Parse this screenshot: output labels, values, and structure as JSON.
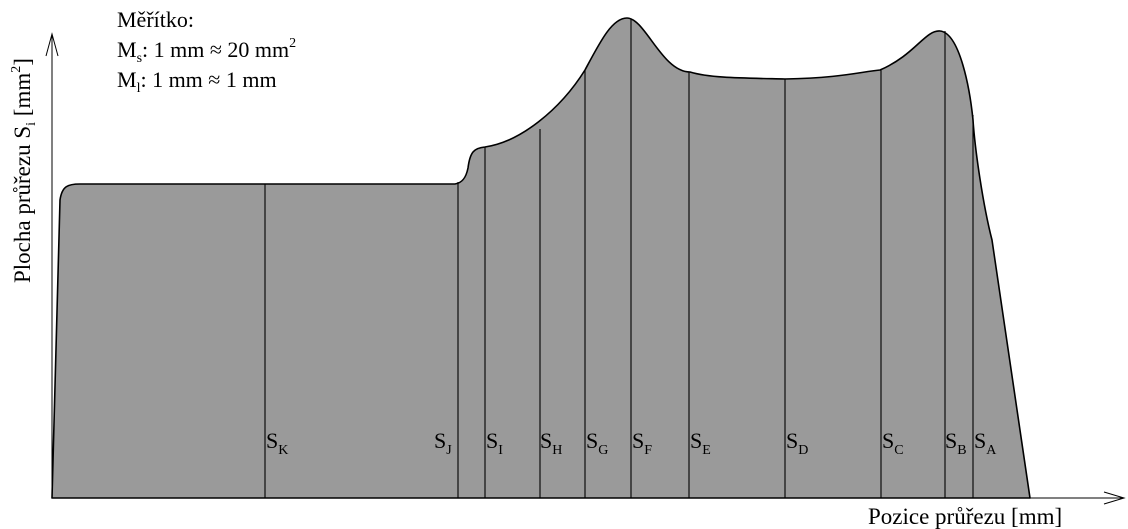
{
  "scale": {
    "title": "Měřítko:",
    "line1": {
      "symbol": "M",
      "sub": "s",
      "text": ": 1 mm ≈ 20 mm",
      "sup": "2"
    },
    "line2": {
      "symbol": "M",
      "sub": "l",
      "text": ": 1 mm ≈ 1 mm"
    }
  },
  "y_axis": {
    "label": "Plocha průřezu S",
    "sub": "i",
    "unit": " [mm",
    "unit_sup": "2",
    "close": "]"
  },
  "x_axis": {
    "label": "Pozice průřezu [mm]"
  },
  "sections": [
    {
      "id": "K",
      "base": "S",
      "sub": "K"
    },
    {
      "id": "J",
      "base": "S",
      "sub": "J"
    },
    {
      "id": "I",
      "base": "S",
      "sub": "I"
    },
    {
      "id": "H",
      "base": "S",
      "sub": "H"
    },
    {
      "id": "G",
      "base": "S",
      "sub": "G"
    },
    {
      "id": "F",
      "base": "S",
      "sub": "F"
    },
    {
      "id": "E",
      "base": "S",
      "sub": "E"
    },
    {
      "id": "D",
      "base": "S",
      "sub": "D"
    },
    {
      "id": "C",
      "base": "S",
      "sub": "C"
    },
    {
      "id": "B",
      "base": "S",
      "sub": "B"
    },
    {
      "id": "A",
      "base": "S",
      "sub": "A"
    }
  ],
  "colors": {
    "fill": "#9a9a9a",
    "stroke": "#000000"
  }
}
